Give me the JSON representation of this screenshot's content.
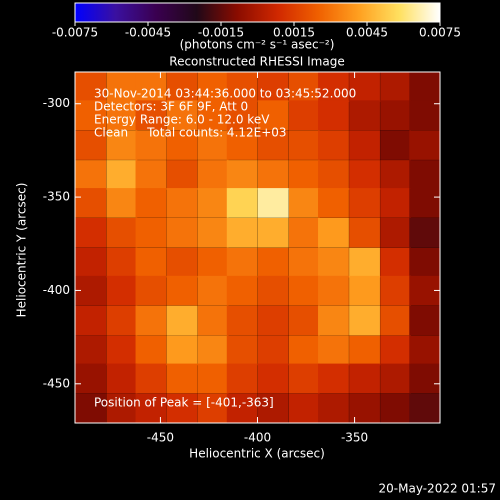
{
  "chart_data": {
    "type": "heatmap",
    "title": "Reconstructed RHESSI Image",
    "colorbar_label": "(photons cm⁻² s⁻¹ asec⁻²)",
    "clim": [
      -0.0075,
      0.0075
    ],
    "colorbar_ticks": [
      -0.0075,
      -0.0045,
      -0.0015,
      0.0015,
      0.0045,
      0.0075
    ],
    "colors": [
      "#0000ff",
      "#3a10a0",
      "#3a0050",
      "#200818",
      "#8a0c00",
      "#d02800",
      "#f06000",
      "#ffa020",
      "#ffe060",
      "#ffffff"
    ],
    "x_label": "Heliocentric X (arcsec)",
    "y_label": "Heliocentric Y (arcsec)",
    "xlim": [
      -494,
      -306
    ],
    "ylim": [
      -471,
      -283
    ],
    "xticks": [
      -450,
      -400,
      -350
    ],
    "yticks": [
      -300,
      -350,
      -400,
      -450
    ],
    "x": [
      -486,
      -470,
      -455,
      -439,
      -423,
      -408,
      -392,
      -376,
      -361,
      -345,
      -329,
      -314
    ],
    "y": [
      -291,
      -306,
      -322,
      -338,
      -353,
      -369,
      -385,
      -400,
      -416,
      -432,
      -447,
      -463
    ],
    "z": [
      [
        0.002,
        0.003,
        0.003,
        0.002,
        0.0025,
        0.002,
        0.0015,
        0.002,
        0.001,
        0.0005,
        0,
        -0.001
      ],
      [
        0.0025,
        0.003,
        0.002,
        0.003,
        0.0025,
        0.002,
        0.0025,
        0.0015,
        0.001,
        0,
        -0.0005,
        -0.001
      ],
      [
        0.002,
        0.0035,
        0.003,
        0.0025,
        0.003,
        0.0025,
        0.002,
        0.002,
        0.0015,
        0.0005,
        -0.001,
        -0.0005
      ],
      [
        0.003,
        0.0045,
        0.003,
        0.002,
        0.003,
        0.0035,
        0.003,
        0.0025,
        0.002,
        0.001,
        0,
        -0.001
      ],
      [
        0.002,
        0.0035,
        0.0025,
        0.003,
        0.0035,
        0.0055,
        0.0065,
        0.0035,
        0.0025,
        0.0015,
        0.0005,
        -0.001
      ],
      [
        0.001,
        0.002,
        0.0025,
        0.003,
        0.0035,
        0.0045,
        0.0045,
        0.003,
        0.004,
        0.002,
        0,
        -0.0015
      ],
      [
        0.0005,
        0.0015,
        0.0025,
        0.002,
        0.0025,
        0.003,
        0.0025,
        0.003,
        0.0035,
        0.0045,
        0.001,
        -0.001
      ],
      [
        0,
        0.001,
        0.002,
        0.0025,
        0.003,
        0.0025,
        0.002,
        0.0025,
        0.003,
        0.004,
        0.0015,
        -0.0005
      ],
      [
        0.0005,
        0.0015,
        0.003,
        0.0045,
        0.003,
        0.002,
        0.0015,
        0.002,
        0.0035,
        0.0045,
        0.002,
        -0.001
      ],
      [
        0,
        0.001,
        0.0025,
        0.004,
        0.0035,
        0.002,
        0.0015,
        0.0025,
        0.003,
        0.0025,
        0.001,
        -0.0005
      ],
      [
        -0.0005,
        0.0005,
        0.0015,
        0.0025,
        0.0025,
        0.0015,
        0.001,
        0.0015,
        0.001,
        0.0005,
        0,
        -0.001
      ],
      [
        -0.001,
        0,
        0.0005,
        0.001,
        0.0015,
        0.0005,
        0,
        0.0005,
        0,
        -0.0005,
        -0.001,
        -0.0015
      ]
    ],
    "annotations": [
      "30-Nov-2014 03:44:36.000 to 03:45:52.000",
      "Detectors: 3F 6F 9F, Att 0",
      "Energy Range: 6.0 - 12.0 keV",
      "Clean     Total counts: 4.12E+03"
    ],
    "peak_label": "Position of Peak = [-401,-363]",
    "footer": "20-May-2022 01:57"
  }
}
